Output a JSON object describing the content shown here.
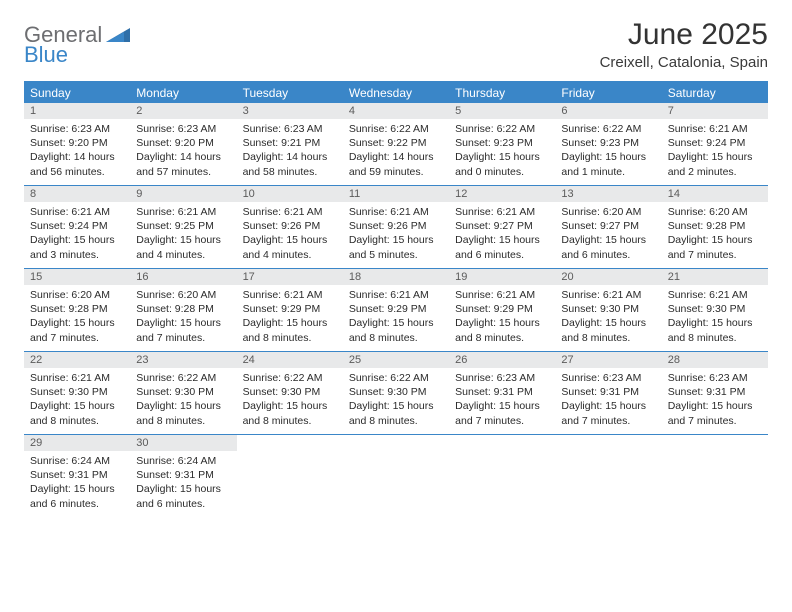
{
  "logo": {
    "part1": "General",
    "part2": "Blue"
  },
  "title": "June 2025",
  "subtitle": "Creixell, Catalonia, Spain",
  "colors": {
    "header_bg": "#3a86c8",
    "header_text": "#ffffff",
    "daynum_bg": "#e8e9ea",
    "daynum_text": "#5b5b5b",
    "body_text": "#2b2b2b",
    "title_text": "#333333",
    "logo_gray": "#6d6e71",
    "logo_blue": "#3a86c8",
    "week_border": "#3a86c8",
    "page_bg": "#ffffff"
  },
  "font": {
    "family": "Arial",
    "dayname_size": 12,
    "daynum_size": 11,
    "body_size": 10.5,
    "title_size": 30,
    "subtitle_size": 15
  },
  "daynames": [
    "Sunday",
    "Monday",
    "Tuesday",
    "Wednesday",
    "Thursday",
    "Friday",
    "Saturday"
  ],
  "days": [
    {
      "n": 1,
      "sunrise": "6:23 AM",
      "sunset": "9:20 PM",
      "daylight": "14 hours and 56 minutes."
    },
    {
      "n": 2,
      "sunrise": "6:23 AM",
      "sunset": "9:20 PM",
      "daylight": "14 hours and 57 minutes."
    },
    {
      "n": 3,
      "sunrise": "6:23 AM",
      "sunset": "9:21 PM",
      "daylight": "14 hours and 58 minutes."
    },
    {
      "n": 4,
      "sunrise": "6:22 AM",
      "sunset": "9:22 PM",
      "daylight": "14 hours and 59 minutes."
    },
    {
      "n": 5,
      "sunrise": "6:22 AM",
      "sunset": "9:23 PM",
      "daylight": "15 hours and 0 minutes."
    },
    {
      "n": 6,
      "sunrise": "6:22 AM",
      "sunset": "9:23 PM",
      "daylight": "15 hours and 1 minute."
    },
    {
      "n": 7,
      "sunrise": "6:21 AM",
      "sunset": "9:24 PM",
      "daylight": "15 hours and 2 minutes."
    },
    {
      "n": 8,
      "sunrise": "6:21 AM",
      "sunset": "9:24 PM",
      "daylight": "15 hours and 3 minutes."
    },
    {
      "n": 9,
      "sunrise": "6:21 AM",
      "sunset": "9:25 PM",
      "daylight": "15 hours and 4 minutes."
    },
    {
      "n": 10,
      "sunrise": "6:21 AM",
      "sunset": "9:26 PM",
      "daylight": "15 hours and 4 minutes."
    },
    {
      "n": 11,
      "sunrise": "6:21 AM",
      "sunset": "9:26 PM",
      "daylight": "15 hours and 5 minutes."
    },
    {
      "n": 12,
      "sunrise": "6:21 AM",
      "sunset": "9:27 PM",
      "daylight": "15 hours and 6 minutes."
    },
    {
      "n": 13,
      "sunrise": "6:20 AM",
      "sunset": "9:27 PM",
      "daylight": "15 hours and 6 minutes."
    },
    {
      "n": 14,
      "sunrise": "6:20 AM",
      "sunset": "9:28 PM",
      "daylight": "15 hours and 7 minutes."
    },
    {
      "n": 15,
      "sunrise": "6:20 AM",
      "sunset": "9:28 PM",
      "daylight": "15 hours and 7 minutes."
    },
    {
      "n": 16,
      "sunrise": "6:20 AM",
      "sunset": "9:28 PM",
      "daylight": "15 hours and 7 minutes."
    },
    {
      "n": 17,
      "sunrise": "6:21 AM",
      "sunset": "9:29 PM",
      "daylight": "15 hours and 8 minutes."
    },
    {
      "n": 18,
      "sunrise": "6:21 AM",
      "sunset": "9:29 PM",
      "daylight": "15 hours and 8 minutes."
    },
    {
      "n": 19,
      "sunrise": "6:21 AM",
      "sunset": "9:29 PM",
      "daylight": "15 hours and 8 minutes."
    },
    {
      "n": 20,
      "sunrise": "6:21 AM",
      "sunset": "9:30 PM",
      "daylight": "15 hours and 8 minutes."
    },
    {
      "n": 21,
      "sunrise": "6:21 AM",
      "sunset": "9:30 PM",
      "daylight": "15 hours and 8 minutes."
    },
    {
      "n": 22,
      "sunrise": "6:21 AM",
      "sunset": "9:30 PM",
      "daylight": "15 hours and 8 minutes."
    },
    {
      "n": 23,
      "sunrise": "6:22 AM",
      "sunset": "9:30 PM",
      "daylight": "15 hours and 8 minutes."
    },
    {
      "n": 24,
      "sunrise": "6:22 AM",
      "sunset": "9:30 PM",
      "daylight": "15 hours and 8 minutes."
    },
    {
      "n": 25,
      "sunrise": "6:22 AM",
      "sunset": "9:30 PM",
      "daylight": "15 hours and 8 minutes."
    },
    {
      "n": 26,
      "sunrise": "6:23 AM",
      "sunset": "9:31 PM",
      "daylight": "15 hours and 7 minutes."
    },
    {
      "n": 27,
      "sunrise": "6:23 AM",
      "sunset": "9:31 PM",
      "daylight": "15 hours and 7 minutes."
    },
    {
      "n": 28,
      "sunrise": "6:23 AM",
      "sunset": "9:31 PM",
      "daylight": "15 hours and 7 minutes."
    },
    {
      "n": 29,
      "sunrise": "6:24 AM",
      "sunset": "9:31 PM",
      "daylight": "15 hours and 6 minutes."
    },
    {
      "n": 30,
      "sunrise": "6:24 AM",
      "sunset": "9:31 PM",
      "daylight": "15 hours and 6 minutes."
    }
  ],
  "layout": {
    "first_day_column": 0,
    "columns": 7
  },
  "labels": {
    "sunrise": "Sunrise:",
    "sunset": "Sunset:",
    "daylight": "Daylight:"
  }
}
